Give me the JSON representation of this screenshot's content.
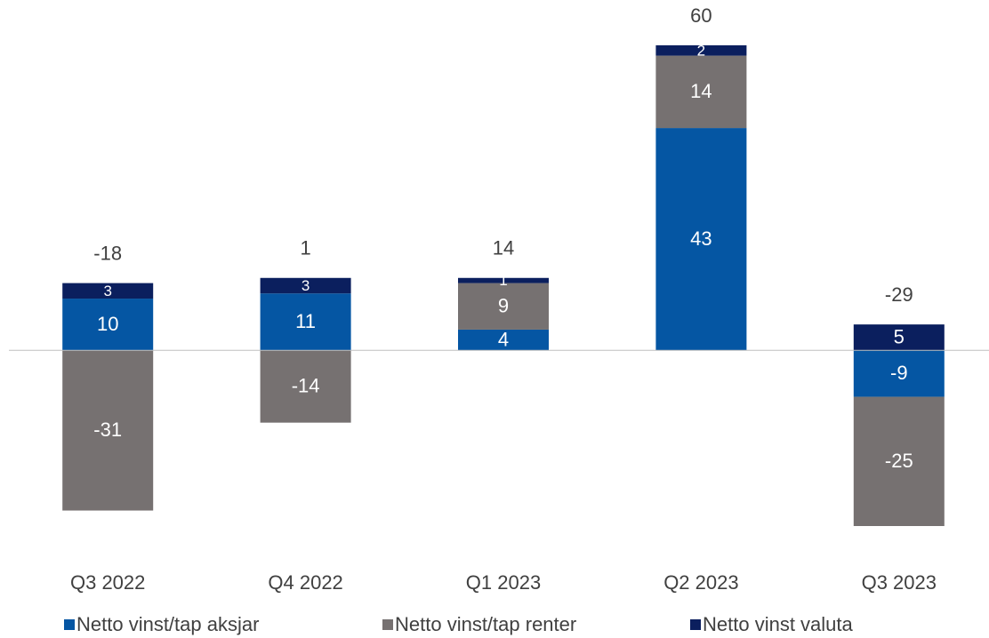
{
  "chart_data": {
    "type": "stacked_bar",
    "categories": [
      "Q3 2022",
      "Q4 2022",
      "Q1 2023",
      "Q2 2023",
      "Q3 2023"
    ],
    "series": [
      {
        "name": "Netto vinst/tap aksjar",
        "color": "#0556a3",
        "values": [
          10,
          11,
          4,
          43,
          -9
        ]
      },
      {
        "name": "Netto vinst/tap renter",
        "color": "#767171",
        "values": [
          -31,
          -14,
          9,
          14,
          -25
        ]
      },
      {
        "name": "Netto vinst valuta",
        "color": "#0b1f5e",
        "values": [
          3,
          3,
          1,
          2,
          5
        ]
      }
    ],
    "totals": [
      -18,
      1,
      14,
      60,
      -29
    ],
    "legend": "bottom"
  }
}
